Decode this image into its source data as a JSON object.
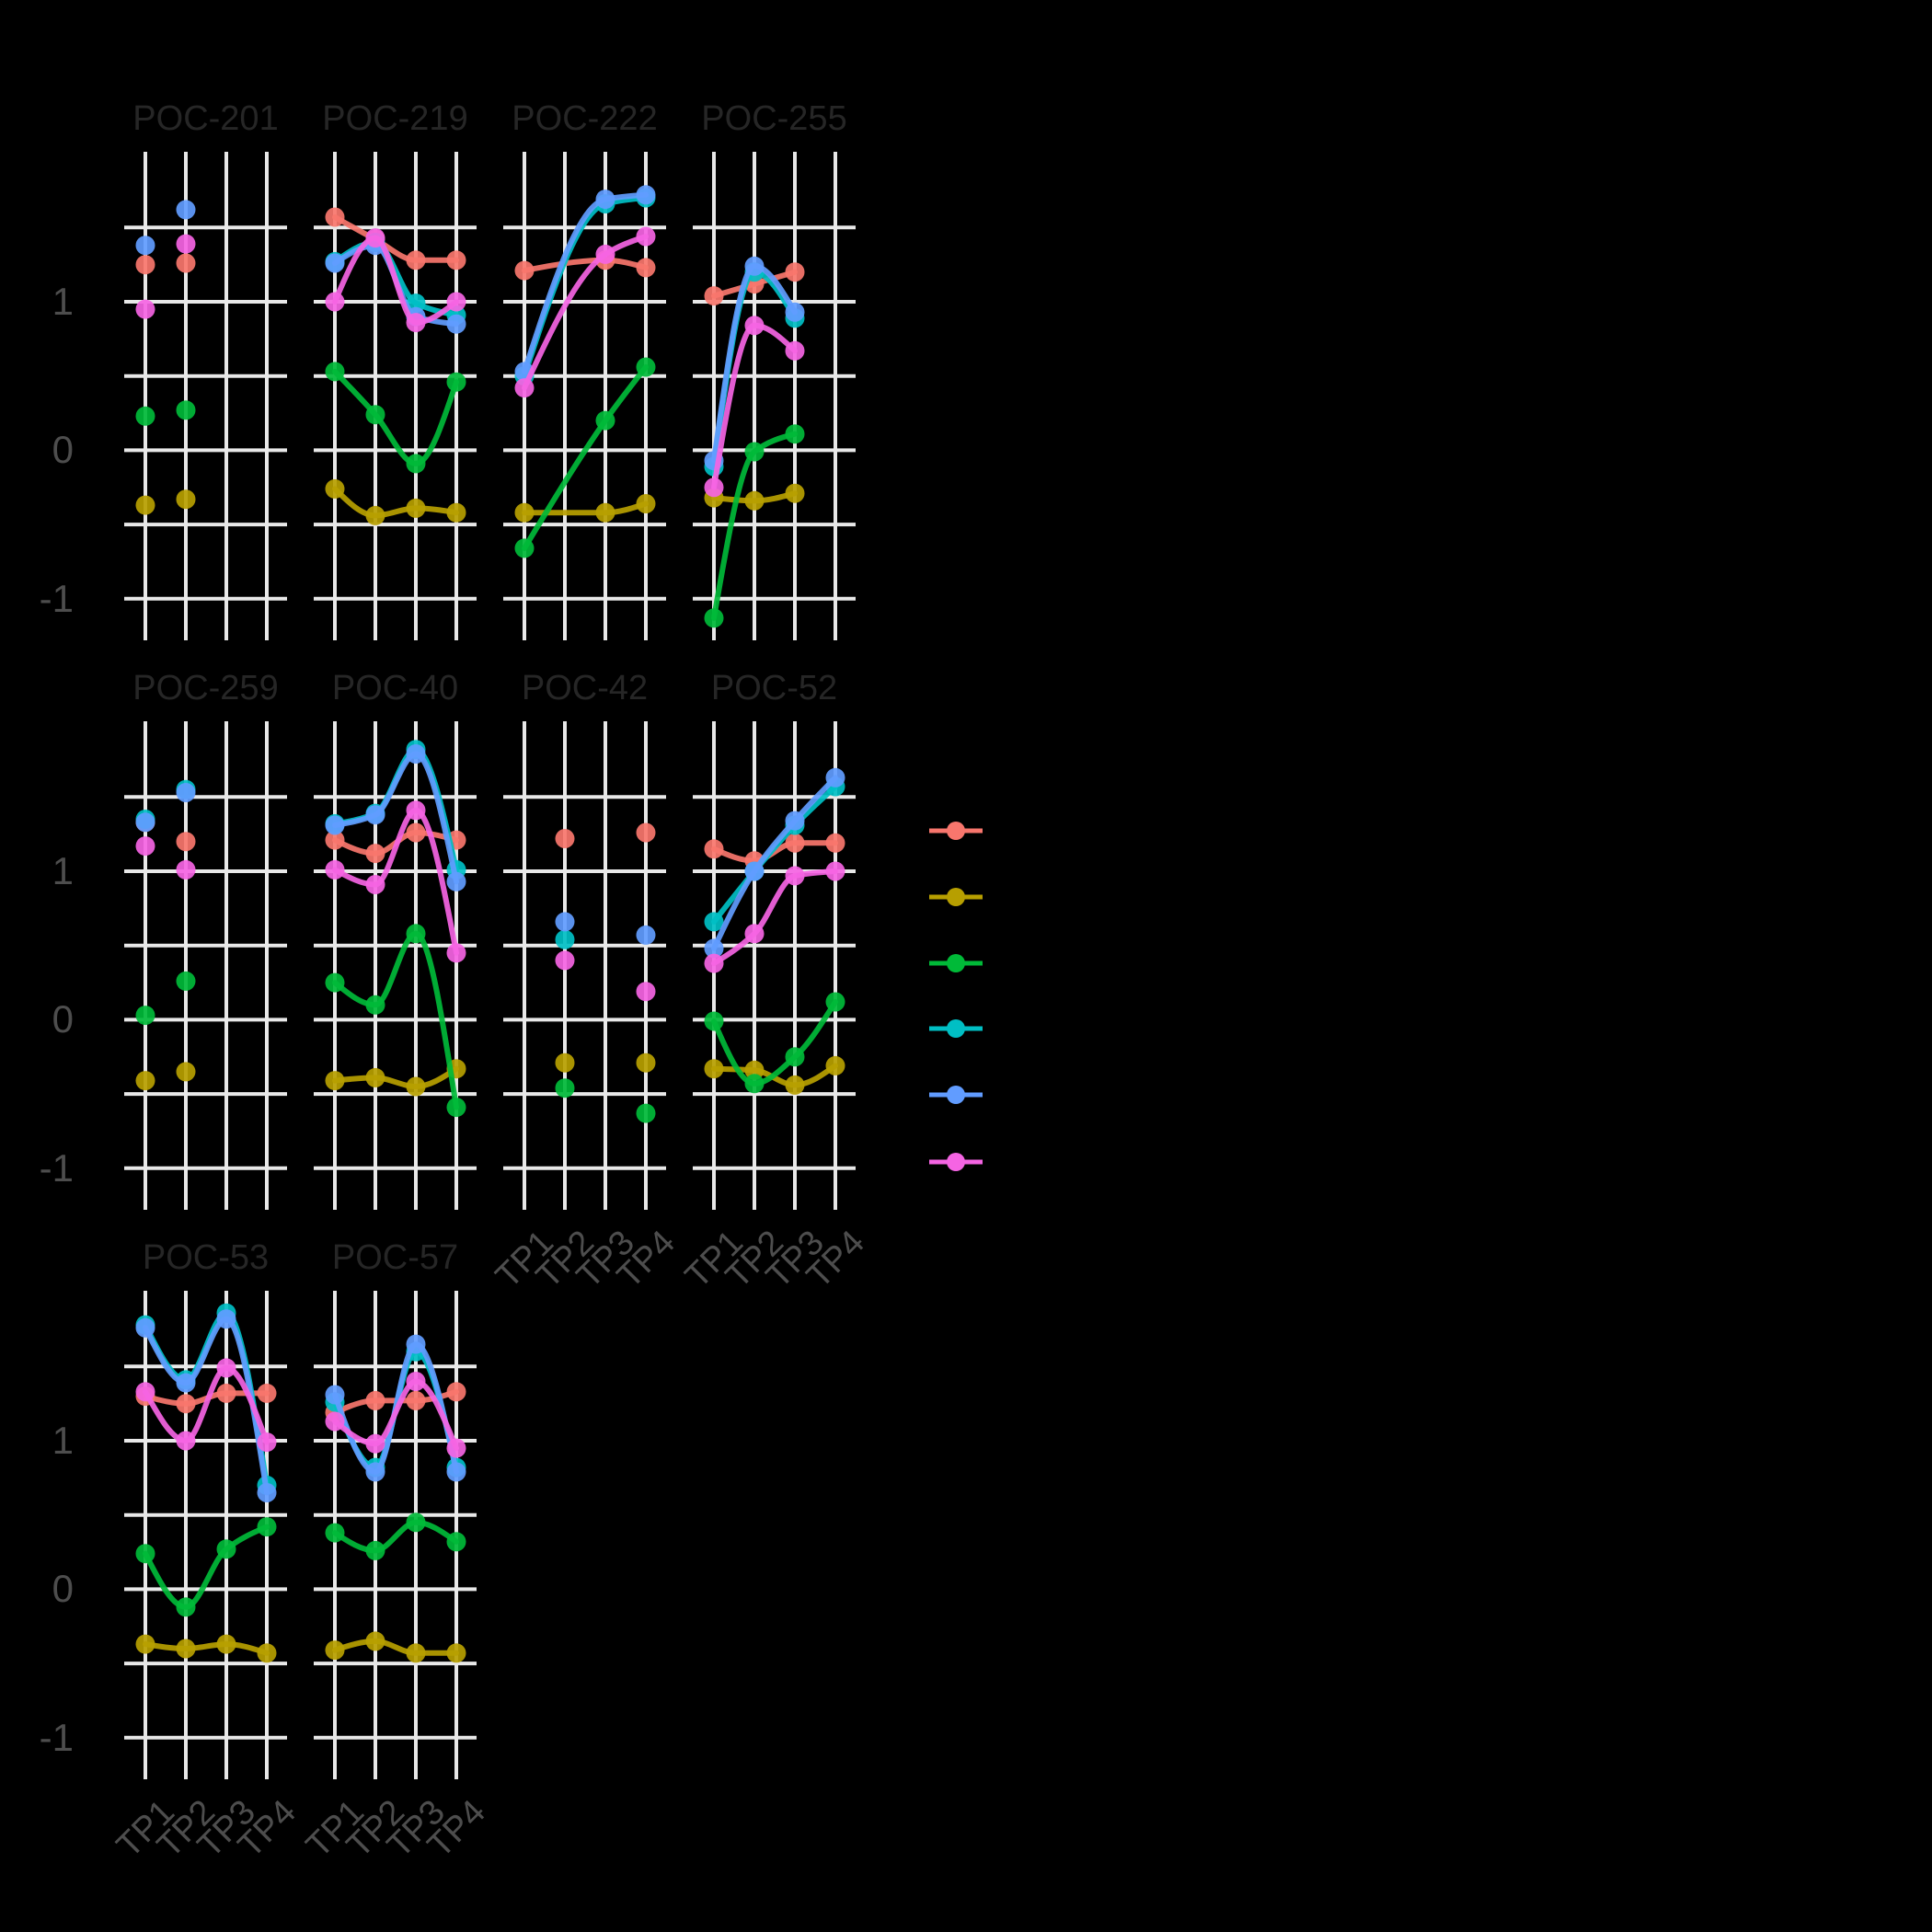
{
  "figure": {
    "background_color": "#000000",
    "grid_color": "#E8E8E8",
    "facet_title_color": "#262626",
    "axis_text_color": "#4d4d4d"
  },
  "chart_data": {
    "type": "line",
    "description": "Faceted line/point chart, 10 facets, 6 color series, black background, legend labels not visible",
    "x_categories": [
      "TP1",
      "TP2",
      "TP3",
      "TP4"
    ],
    "y_tick_labels": [
      "1",
      "0",
      "-1"
    ],
    "y_tick_values": [
      1,
      0,
      -1
    ],
    "gridlines_y": [
      1.5,
      1.0,
      0.5,
      0.0,
      -0.5,
      -1.0
    ],
    "ylim": [
      -1.28,
      2.01
    ],
    "grid": "on",
    "legend_position": "right",
    "series": [
      {
        "name": "salmon",
        "color": "#F8766D"
      },
      {
        "name": "olive",
        "color": "#B79F00"
      },
      {
        "name": "green",
        "color": "#00BA38"
      },
      {
        "name": "cyan",
        "color": "#00BFC4"
      },
      {
        "name": "blue",
        "color": "#619CFF"
      },
      {
        "name": "magenta",
        "color": "#F564E3"
      }
    ],
    "panels": [
      {
        "title": "POC-201",
        "draw_lines": false,
        "values": {
          "salmon": [
            1.25,
            1.26,
            null,
            null
          ],
          "olive": [
            -0.37,
            -0.33,
            null,
            null
          ],
          "green": [
            0.23,
            0.27,
            null,
            null
          ],
          "cyan": [
            null,
            null,
            null,
            null
          ],
          "blue": [
            1.38,
            1.62,
            null,
            null
          ],
          "magenta": [
            0.95,
            1.39,
            null,
            null
          ]
        }
      },
      {
        "title": "POC-219",
        "draw_lines": true,
        "values": {
          "salmon": [
            1.57,
            1.42,
            1.28,
            1.28
          ],
          "olive": [
            -0.26,
            -0.44,
            -0.39,
            -0.42
          ],
          "green": [
            0.53,
            0.24,
            -0.09,
            0.46
          ],
          "cyan": [
            1.27,
            1.4,
            0.99,
            0.91
          ],
          "blue": [
            1.26,
            1.38,
            0.9,
            0.85
          ],
          "magenta": [
            1.0,
            1.43,
            0.86,
            1.0
          ]
        }
      },
      {
        "title": "POC-222",
        "draw_lines": true,
        "values": {
          "salmon": [
            1.21,
            null,
            1.28,
            1.23
          ],
          "olive": [
            -0.42,
            null,
            -0.42,
            -0.36
          ],
          "green": [
            -0.66,
            null,
            0.2,
            0.56
          ],
          "cyan": [
            0.5,
            null,
            1.66,
            1.7
          ],
          "blue": [
            0.53,
            null,
            1.69,
            1.72
          ],
          "magenta": [
            0.42,
            null,
            1.32,
            1.44
          ]
        }
      },
      {
        "title": "POC-255",
        "draw_lines": true,
        "values": {
          "salmon": [
            1.04,
            1.12,
            1.2,
            null
          ],
          "olive": [
            -0.32,
            -0.34,
            -0.29,
            null
          ],
          "green": [
            -1.13,
            -0.01,
            0.11,
            null
          ],
          "cyan": [
            -0.11,
            1.2,
            0.89,
            null
          ],
          "blue": [
            -0.07,
            1.24,
            0.93,
            null
          ],
          "magenta": [
            -0.25,
            0.84,
            0.67,
            null
          ]
        }
      },
      {
        "title": "POC-259",
        "draw_lines": false,
        "values": {
          "salmon": [
            1.33,
            1.2,
            null,
            null
          ],
          "olive": [
            -0.41,
            -0.35,
            null,
            null
          ],
          "green": [
            0.03,
            0.26,
            null,
            null
          ],
          "cyan": [
            1.35,
            1.55,
            null,
            null
          ],
          "blue": [
            1.33,
            1.53,
            null,
            null
          ],
          "magenta": [
            1.17,
            1.01,
            null,
            null
          ]
        }
      },
      {
        "title": "POC-40",
        "draw_lines": true,
        "values": {
          "salmon": [
            1.21,
            1.12,
            1.26,
            1.21
          ],
          "olive": [
            -0.41,
            -0.39,
            -0.45,
            -0.33
          ],
          "green": [
            0.25,
            0.1,
            0.58,
            -0.59
          ],
          "cyan": [
            1.32,
            1.39,
            1.82,
            1.01
          ],
          "blue": [
            1.31,
            1.38,
            1.79,
            0.93
          ],
          "magenta": [
            1.01,
            0.91,
            1.41,
            0.45
          ]
        }
      },
      {
        "title": "POC-42",
        "draw_lines": false,
        "values": {
          "salmon": [
            null,
            1.22,
            null,
            1.26
          ],
          "olive": [
            null,
            -0.29,
            null,
            -0.29
          ],
          "green": [
            null,
            -0.46,
            null,
            -0.63
          ],
          "cyan": [
            null,
            0.54,
            null,
            null
          ],
          "blue": [
            null,
            0.66,
            null,
            0.57
          ],
          "magenta": [
            null,
            0.4,
            null,
            0.19
          ]
        }
      },
      {
        "title": "POC-52",
        "draw_lines": true,
        "values": {
          "salmon": [
            1.15,
            1.07,
            1.19,
            1.19
          ],
          "olive": [
            -0.33,
            -0.34,
            -0.44,
            -0.31
          ],
          "green": [
            -0.01,
            -0.43,
            -0.25,
            0.12
          ],
          "cyan": [
            0.66,
            1.0,
            1.31,
            1.57
          ],
          "blue": [
            0.48,
            1.0,
            1.34,
            1.63
          ],
          "magenta": [
            0.38,
            0.58,
            0.97,
            1.0
          ]
        }
      },
      {
        "title": "POC-53",
        "draw_lines": true,
        "values": {
          "salmon": [
            1.3,
            1.25,
            1.32,
            1.32
          ],
          "olive": [
            -0.37,
            -0.4,
            -0.37,
            -0.43
          ],
          "green": [
            0.24,
            -0.12,
            0.27,
            0.42
          ],
          "cyan": [
            1.78,
            1.41,
            1.86,
            0.7
          ],
          "blue": [
            1.76,
            1.39,
            1.82,
            0.65
          ],
          "magenta": [
            1.33,
            1.0,
            1.49,
            0.99
          ]
        }
      },
      {
        "title": "POC-57",
        "draw_lines": true,
        "values": {
          "salmon": [
            1.19,
            1.27,
            1.27,
            1.33
          ],
          "olive": [
            -0.41,
            -0.35,
            -0.43,
            -0.43
          ],
          "green": [
            0.38,
            0.26,
            0.45,
            0.32
          ],
          "cyan": [
            1.26,
            0.82,
            1.6,
            0.82
          ],
          "blue": [
            1.31,
            0.79,
            1.65,
            0.79
          ],
          "magenta": [
            1.13,
            0.98,
            1.4,
            0.95
          ]
        }
      }
    ],
    "legend_labels_visible": false
  }
}
